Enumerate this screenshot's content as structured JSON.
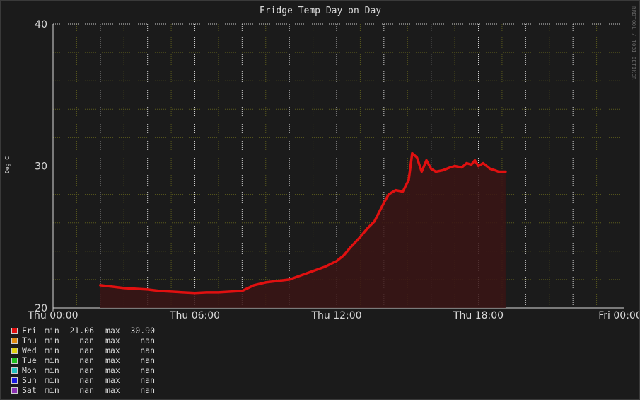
{
  "chart_data": {
    "type": "area",
    "title": "Fridge Temp Day on Day",
    "ylabel": "Deg C",
    "xlabel": "",
    "watermark": "RRDTOOL / TOBI OETIKER",
    "xlim": [
      0,
      24
    ],
    "ylim": [
      20,
      40
    ],
    "x_major_ticks": [
      {
        "value": 0,
        "label": "Thu 00:00"
      },
      {
        "value": 6,
        "label": "Thu 06:00"
      },
      {
        "value": 12,
        "label": "Thu 12:00"
      },
      {
        "value": 18,
        "label": "Thu 18:00"
      },
      {
        "value": 24,
        "label": "Fri 00:00"
      }
    ],
    "y_major_ticks": [
      {
        "value": 20,
        "label": "20"
      },
      {
        "value": 30,
        "label": "30"
      },
      {
        "value": 40,
        "label": "40"
      }
    ],
    "grid": true,
    "colors": {
      "line": "#e01010",
      "fill": "#3a1414",
      "major_grid": "#cfcfcf",
      "minor_grid": "#5c5c1c",
      "plot_background": "#1b1b1b"
    },
    "series": [
      {
        "name": "Fri",
        "x": [
          2.0,
          2.5,
          3.0,
          3.5,
          4.0,
          4.5,
          5.0,
          5.5,
          6.0,
          6.5,
          7.0,
          7.5,
          8.0,
          8.5,
          9.0,
          9.5,
          10.0,
          10.5,
          11.0,
          11.5,
          12.0,
          12.3,
          12.6,
          13.0,
          13.3,
          13.6,
          14.0,
          14.2,
          14.5,
          14.8,
          14.95,
          15.05,
          15.2,
          15.4,
          15.6,
          15.8,
          16.0,
          16.2,
          16.5,
          16.8,
          17.0,
          17.3,
          17.5,
          17.7,
          17.85,
          18.0,
          18.2,
          18.5,
          18.7,
          18.85,
          19.0,
          19.15
        ],
        "values": [
          21.6,
          21.5,
          21.4,
          21.35,
          21.3,
          21.2,
          21.15,
          21.1,
          21.06,
          21.1,
          21.1,
          21.15,
          21.2,
          21.6,
          21.8,
          21.9,
          22.0,
          22.3,
          22.6,
          22.9,
          23.3,
          23.7,
          24.3,
          25.0,
          25.6,
          26.1,
          27.4,
          28.0,
          28.3,
          28.2,
          28.7,
          29.0,
          30.9,
          30.6,
          29.6,
          30.4,
          29.8,
          29.6,
          29.7,
          29.9,
          30.0,
          29.9,
          30.2,
          30.1,
          30.4,
          30.0,
          30.2,
          29.8,
          29.7,
          29.6,
          29.6,
          29.6
        ]
      }
    ]
  },
  "legend": [
    {
      "name": "Fri",
      "color": "#e01010",
      "min_label": "min",
      "min": "21.06",
      "max_label": "max",
      "max": "30.90"
    },
    {
      "name": "Thu",
      "color": "#e08a10",
      "min_label": "min",
      "min": "nan",
      "max_label": "max",
      "max": "nan"
    },
    {
      "name": "Wed",
      "color": "#e0d010",
      "min_label": "min",
      "min": "nan",
      "max_label": "max",
      "max": "nan"
    },
    {
      "name": "Tue",
      "color": "#20c020",
      "min_label": "min",
      "min": "nan",
      "max_label": "max",
      "max": "nan"
    },
    {
      "name": "Mon",
      "color": "#20c0c0",
      "min_label": "min",
      "min": "nan",
      "max_label": "max",
      "max": "nan"
    },
    {
      "name": "Sun",
      "color": "#1a1ae0",
      "min_label": "min",
      "min": "nan",
      "max_label": "max",
      "max": "nan"
    },
    {
      "name": "Sat",
      "color": "#8a30b0",
      "min_label": "min",
      "min": "nan",
      "max_label": "max",
      "max": "nan"
    }
  ]
}
